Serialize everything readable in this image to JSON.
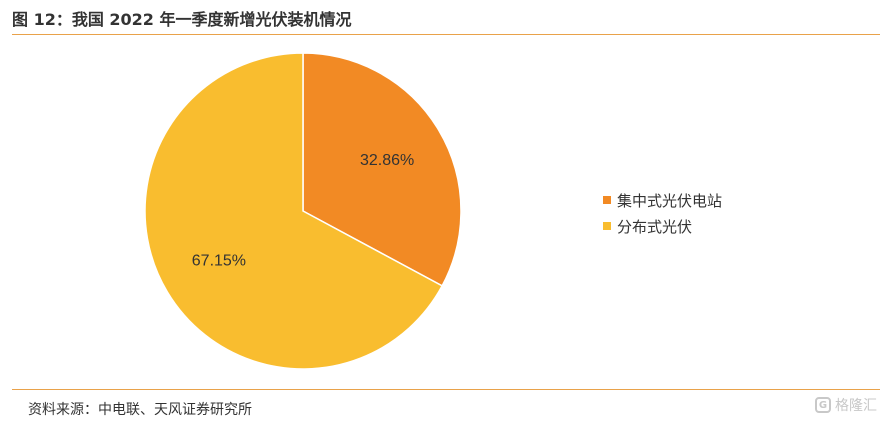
{
  "header": {
    "title": "图 12：我国 2022 年一季度新增光伏装机情况"
  },
  "footer": {
    "source": "资料来源：中电联、天风证券研究所",
    "watermark_text": "格隆汇",
    "watermark_icon": "gelonghui-logo-icon"
  },
  "colors": {
    "accent_rule": "#e9a24a",
    "centralized": "#f28a24",
    "distributed": "#f9bd2f"
  },
  "chart_data": {
    "type": "pie",
    "title": "",
    "labels": [
      "集中式光伏电站",
      "分布式光伏"
    ],
    "values": [
      32.86,
      67.15
    ],
    "data_labels": [
      "32.86%",
      "67.15%"
    ],
    "colors": [
      "#f28a24",
      "#f9bd2f"
    ],
    "start_angle": "12 o'clock",
    "direction": "clockwise",
    "legend_position": "right"
  }
}
